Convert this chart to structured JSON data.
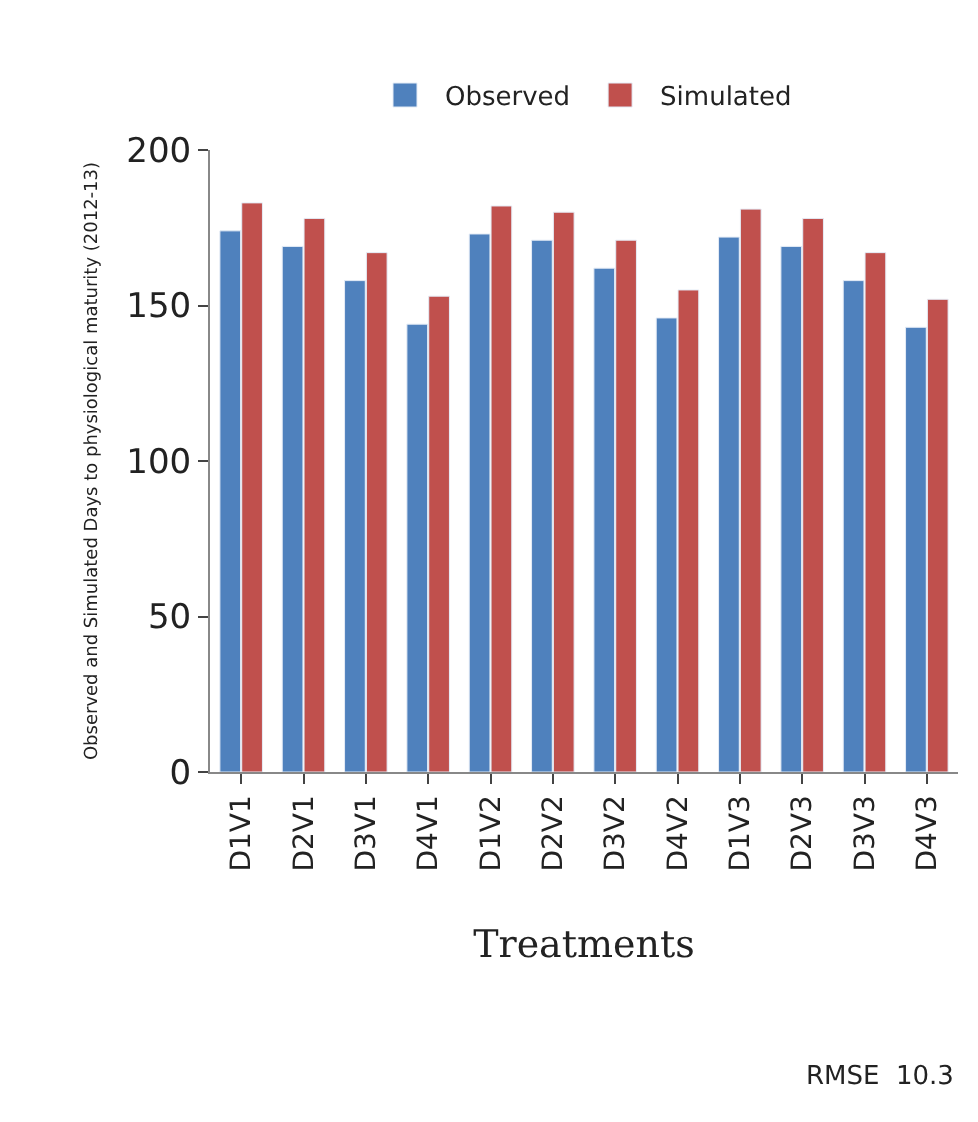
{
  "chart_data": {
    "type": "bar",
    "xlabel": "Treatments",
    "ylabel": "Observed and Simulated Days to physiological maturity (2012-13)",
    "categories": [
      "D1V1",
      "D2V1",
      "D3V1",
      "D4V1",
      "D1V2",
      "D2V2",
      "D3V2",
      "D4V2",
      "D1V3",
      "D2V3",
      "D3V3",
      "D4V3"
    ],
    "series": [
      {
        "name": "Observed",
        "color": "#4f81bd",
        "values": [
          174,
          169,
          158,
          144,
          173,
          171,
          162,
          146,
          172,
          169,
          158,
          143
        ]
      },
      {
        "name": "Simulated",
        "color": "#c0504d",
        "values": [
          183,
          178,
          167,
          153,
          182,
          180,
          171,
          155,
          181,
          178,
          167,
          152
        ]
      }
    ],
    "ylim": [
      0,
      200
    ],
    "yticks": [
      0,
      50,
      100,
      150,
      200
    ],
    "legend": "top",
    "annotations": [
      "RMSE  10.3"
    ]
  }
}
